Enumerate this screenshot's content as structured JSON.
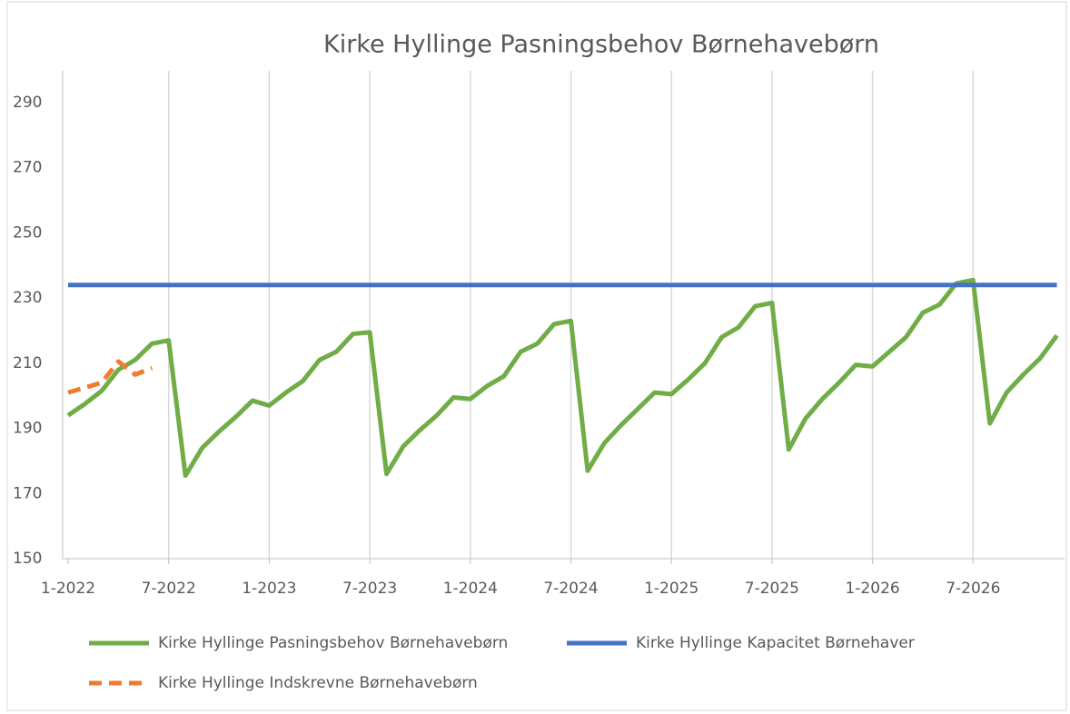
{
  "chart_data": {
    "type": "line",
    "title": "Kirke Hyllinge Pasningsbehov Børnehavebørn",
    "categories": [
      "1-2022",
      null,
      null,
      null,
      null,
      null,
      "7-2022",
      null,
      null,
      null,
      null,
      null,
      "1-2023",
      null,
      null,
      null,
      null,
      null,
      "7-2023",
      null,
      null,
      null,
      null,
      null,
      "1-2024",
      null,
      null,
      null,
      null,
      null,
      "7-2024",
      null,
      null,
      null,
      null,
      null,
      "1-2025",
      null,
      null,
      null,
      null,
      null,
      "7-2025",
      null,
      null,
      null,
      null,
      null,
      "1-2026",
      null,
      null,
      null,
      null,
      null,
      "7-2026",
      null,
      null,
      null,
      null,
      null
    ],
    "series": [
      {
        "name": "Kirke Hyllinge Pasningsbehov Børnehavebørn",
        "color": "#70ad47",
        "dash": false,
        "values": [
          194,
          197.5,
          201.5,
          208,
          211,
          216,
          217,
          175.5,
          184,
          189,
          193.5,
          198.5,
          197,
          201,
          204.5,
          211,
          213.5,
          219,
          219.5,
          176,
          184.5,
          189.5,
          194,
          199.5,
          199,
          203,
          206,
          213.5,
          216,
          222,
          223,
          177,
          185.5,
          191,
          196,
          201,
          200.5,
          205,
          210,
          218,
          221,
          227.5,
          228.5,
          183.5,
          193,
          199,
          204,
          209.5,
          209,
          213.5,
          218,
          225.5,
          228,
          234.5,
          235.5,
          191.5,
          201,
          206.5,
          211.5,
          218.5
        ]
      },
      {
        "name": "Kirke Hyllinge Kapacitet Børnehaver",
        "color": "#4472c4",
        "dash": false,
        "values": [
          234,
          234,
          234,
          234,
          234,
          234,
          234,
          234,
          234,
          234,
          234,
          234,
          234,
          234,
          234,
          234,
          234,
          234,
          234,
          234,
          234,
          234,
          234,
          234,
          234,
          234,
          234,
          234,
          234,
          234,
          234,
          234,
          234,
          234,
          234,
          234,
          234,
          234,
          234,
          234,
          234,
          234,
          234,
          234,
          234,
          234,
          234,
          234,
          234,
          234,
          234,
          234,
          234,
          234,
          234,
          234,
          234,
          234,
          234,
          234
        ]
      },
      {
        "name": "Kirke Hyllinge Indskrevne Børnehavebørn",
        "color": "#ed7d31",
        "dash": true,
        "values": [
          201,
          202.5,
          204,
          210.5,
          206.5,
          208.5,
          null,
          null,
          null,
          null,
          null,
          null,
          null,
          null,
          null,
          null,
          null,
          null,
          null,
          null,
          null,
          null,
          null,
          null,
          null,
          null,
          null,
          null,
          null,
          null,
          null,
          null,
          null,
          null,
          null,
          null,
          null,
          null,
          null,
          null,
          null,
          null,
          null,
          null,
          null,
          null,
          null,
          null,
          null,
          null,
          null,
          null,
          null,
          null,
          null,
          null,
          null,
          null,
          null,
          null
        ]
      }
    ],
    "ylim": [
      150,
      295
    ],
    "yticks": [
      150,
      170,
      190,
      210,
      230,
      250,
      270,
      290
    ],
    "xgrid": true
  }
}
